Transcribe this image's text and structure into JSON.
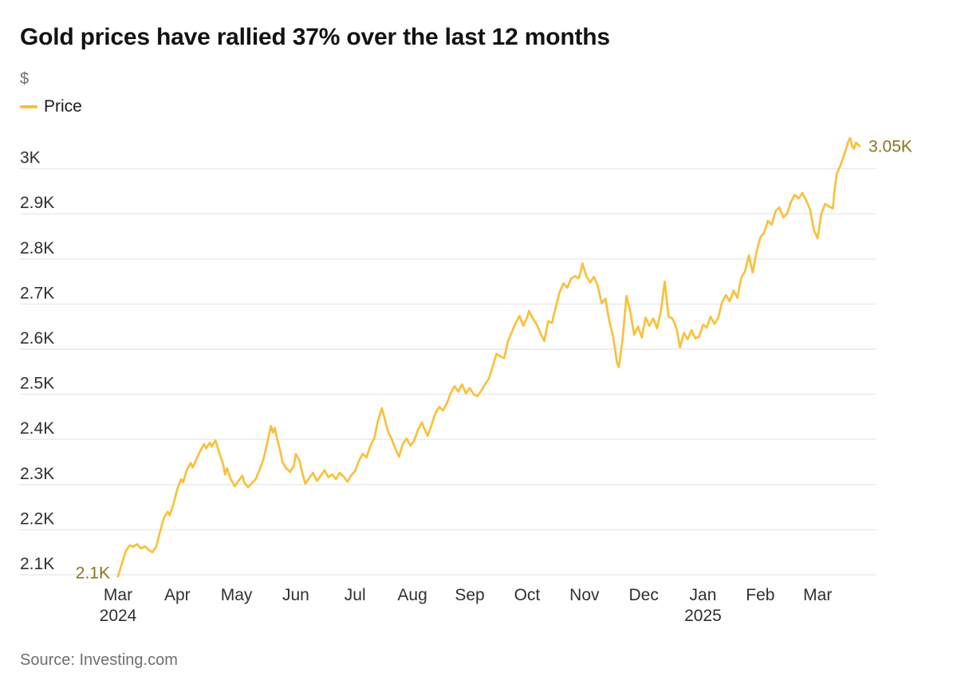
{
  "header": {
    "title": "Gold prices have rallied 37% over the last 12 months",
    "unit_label": "$",
    "legend": [
      {
        "label": "Price",
        "color": "#F8C13C"
      }
    ]
  },
  "footer": {
    "source": "Source: Investing.com"
  },
  "colors": {
    "line": "#F8C13C",
    "annotation_text": "#8B7423",
    "grid": "#E9E9E9",
    "tick_label": "#303030",
    "muted_text": "#6f6f6f",
    "title_text": "#121212",
    "background": "#ffffff"
  },
  "chart_data": {
    "type": "line",
    "title": "Gold prices have rallied 37% over the last 12 months",
    "unit": "$",
    "legend_entries": [
      "Price"
    ],
    "legend_position": "top-left",
    "grid": true,
    "xlabel": "",
    "ylabel": "$",
    "x_range_days": [
      0,
      388
    ],
    "y_range": [
      2060,
      3090
    ],
    "y_ticks": [
      {
        "label": "3K",
        "value": 3000
      },
      {
        "label": "2.9K",
        "value": 2900
      },
      {
        "label": "2.8K",
        "value": 2800
      },
      {
        "label": "2.7K",
        "value": 2700
      },
      {
        "label": "2.6K",
        "value": 2600
      },
      {
        "label": "2.5K",
        "value": 2500
      },
      {
        "label": "2.4K",
        "value": 2400
      },
      {
        "label": "2.3K",
        "value": 2300
      },
      {
        "label": "2.2K",
        "value": 2200
      },
      {
        "label": "2.1K",
        "value": 2100
      }
    ],
    "x_ticks": [
      {
        "label": "Mar",
        "year": "2024",
        "day": 0
      },
      {
        "label": "Apr",
        "day": 31
      },
      {
        "label": "May",
        "day": 62
      },
      {
        "label": "Jun",
        "day": 93
      },
      {
        "label": "Jul",
        "day": 124
      },
      {
        "label": "Aug",
        "day": 154
      },
      {
        "label": "Sep",
        "day": 184
      },
      {
        "label": "Oct",
        "day": 214
      },
      {
        "label": "Nov",
        "day": 244
      },
      {
        "label": "Dec",
        "day": 275
      },
      {
        "label": "Jan",
        "year": "2025",
        "day": 306
      },
      {
        "label": "Feb",
        "day": 336
      },
      {
        "label": "Mar",
        "day": 366
      }
    ],
    "annotations": [
      {
        "text": "2.1K",
        "day": 0,
        "value": 2096,
        "position": "start"
      },
      {
        "text": "3.05K",
        "day": 388,
        "value": 3050,
        "position": "end"
      }
    ],
    "series": [
      {
        "name": "Price",
        "color": "#F8C13C",
        "points": [
          [
            0,
            2096
          ],
          [
            2,
            2125
          ],
          [
            4,
            2152
          ],
          [
            6,
            2165
          ],
          [
            8,
            2162
          ],
          [
            10,
            2168
          ],
          [
            12,
            2158
          ],
          [
            14,
            2163
          ],
          [
            16,
            2155
          ],
          [
            18,
            2150
          ],
          [
            20,
            2162
          ],
          [
            22,
            2196
          ],
          [
            24,
            2226
          ],
          [
            26,
            2240
          ],
          [
            27,
            2232
          ],
          [
            29,
            2256
          ],
          [
            31,
            2290
          ],
          [
            33,
            2312
          ],
          [
            34,
            2305
          ],
          [
            36,
            2332
          ],
          [
            38,
            2348
          ],
          [
            39,
            2338
          ],
          [
            41,
            2356
          ],
          [
            43,
            2375
          ],
          [
            45,
            2390
          ],
          [
            46,
            2380
          ],
          [
            48,
            2393
          ],
          [
            49,
            2384
          ],
          [
            51,
            2398
          ],
          [
            53,
            2370
          ],
          [
            55,
            2345
          ],
          [
            56,
            2322
          ],
          [
            57,
            2336
          ],
          [
            59,
            2312
          ],
          [
            61,
            2296
          ],
          [
            63,
            2308
          ],
          [
            65,
            2320
          ],
          [
            66,
            2305
          ],
          [
            68,
            2294
          ],
          [
            70,
            2303
          ],
          [
            72,
            2312
          ],
          [
            74,
            2332
          ],
          [
            76,
            2355
          ],
          [
            78,
            2392
          ],
          [
            80,
            2430
          ],
          [
            81,
            2415
          ],
          [
            82,
            2426
          ],
          [
            83,
            2405
          ],
          [
            85,
            2372
          ],
          [
            86,
            2350
          ],
          [
            88,
            2336
          ],
          [
            90,
            2328
          ],
          [
            92,
            2342
          ],
          [
            93,
            2368
          ],
          [
            95,
            2352
          ],
          [
            96,
            2332
          ],
          [
            98,
            2302
          ],
          [
            100,
            2314
          ],
          [
            102,
            2326
          ],
          [
            104,
            2308
          ],
          [
            106,
            2319
          ],
          [
            108,
            2332
          ],
          [
            110,
            2316
          ],
          [
            112,
            2323
          ],
          [
            114,
            2312
          ],
          [
            116,
            2326
          ],
          [
            118,
            2318
          ],
          [
            120,
            2306
          ],
          [
            122,
            2320
          ],
          [
            124,
            2330
          ],
          [
            126,
            2352
          ],
          [
            128,
            2368
          ],
          [
            130,
            2360
          ],
          [
            132,
            2386
          ],
          [
            134,
            2402
          ],
          [
            136,
            2442
          ],
          [
            138,
            2469
          ],
          [
            139,
            2454
          ],
          [
            141,
            2420
          ],
          [
            143,
            2402
          ],
          [
            145,
            2380
          ],
          [
            147,
            2362
          ],
          [
            149,
            2390
          ],
          [
            151,
            2402
          ],
          [
            153,
            2386
          ],
          [
            155,
            2398
          ],
          [
            157,
            2422
          ],
          [
            159,
            2438
          ],
          [
            160,
            2426
          ],
          [
            162,
            2408
          ],
          [
            164,
            2432
          ],
          [
            166,
            2458
          ],
          [
            168,
            2472
          ],
          [
            170,
            2464
          ],
          [
            172,
            2480
          ],
          [
            174,
            2502
          ],
          [
            176,
            2518
          ],
          [
            178,
            2506
          ],
          [
            180,
            2522
          ],
          [
            182,
            2502
          ],
          [
            184,
            2514
          ],
          [
            186,
            2500
          ],
          [
            188,
            2496
          ],
          [
            190,
            2508
          ],
          [
            192,
            2522
          ],
          [
            194,
            2535
          ],
          [
            196,
            2562
          ],
          [
            198,
            2590
          ],
          [
            200,
            2584
          ],
          [
            202,
            2580
          ],
          [
            204,
            2618
          ],
          [
            206,
            2638
          ],
          [
            208,
            2658
          ],
          [
            210,
            2674
          ],
          [
            212,
            2652
          ],
          [
            214,
            2670
          ],
          [
            215,
            2685
          ],
          [
            217,
            2668
          ],
          [
            219,
            2655
          ],
          [
            221,
            2635
          ],
          [
            223,
            2618
          ],
          [
            225,
            2662
          ],
          [
            227,
            2658
          ],
          [
            229,
            2694
          ],
          [
            231,
            2726
          ],
          [
            233,
            2746
          ],
          [
            235,
            2736
          ],
          [
            237,
            2756
          ],
          [
            239,
            2762
          ],
          [
            241,
            2757
          ],
          [
            242,
            2772
          ],
          [
            243,
            2790
          ],
          [
            245,
            2762
          ],
          [
            247,
            2748
          ],
          [
            249,
            2760
          ],
          [
            251,
            2740
          ],
          [
            253,
            2702
          ],
          [
            255,
            2712
          ],
          [
            257,
            2662
          ],
          [
            259,
            2628
          ],
          [
            261,
            2570
          ],
          [
            262,
            2560
          ],
          [
            264,
            2625
          ],
          [
            266,
            2718
          ],
          [
            268,
            2682
          ],
          [
            270,
            2632
          ],
          [
            272,
            2650
          ],
          [
            274,
            2626
          ],
          [
            276,
            2670
          ],
          [
            278,
            2652
          ],
          [
            280,
            2668
          ],
          [
            282,
            2646
          ],
          [
            284,
            2685
          ],
          [
            286,
            2750
          ],
          [
            288,
            2672
          ],
          [
            290,
            2668
          ],
          [
            292,
            2648
          ],
          [
            294,
            2604
          ],
          [
            296,
            2636
          ],
          [
            298,
            2622
          ],
          [
            300,
            2642
          ],
          [
            302,
            2624
          ],
          [
            304,
            2628
          ],
          [
            306,
            2654
          ],
          [
            308,
            2648
          ],
          [
            310,
            2672
          ],
          [
            312,
            2656
          ],
          [
            314,
            2670
          ],
          [
            316,
            2704
          ],
          [
            318,
            2720
          ],
          [
            320,
            2706
          ],
          [
            322,
            2730
          ],
          [
            324,
            2714
          ],
          [
            326,
            2758
          ],
          [
            328,
            2772
          ],
          [
            330,
            2808
          ],
          [
            332,
            2770
          ],
          [
            334,
            2815
          ],
          [
            336,
            2848
          ],
          [
            338,
            2858
          ],
          [
            340,
            2884
          ],
          [
            342,
            2876
          ],
          [
            344,
            2906
          ],
          [
            346,
            2914
          ],
          [
            348,
            2892
          ],
          [
            350,
            2900
          ],
          [
            352,
            2926
          ],
          [
            354,
            2942
          ],
          [
            356,
            2934
          ],
          [
            358,
            2946
          ],
          [
            360,
            2930
          ],
          [
            362,
            2910
          ],
          [
            364,
            2864
          ],
          [
            366,
            2846
          ],
          [
            368,
            2902
          ],
          [
            370,
            2922
          ],
          [
            372,
            2916
          ],
          [
            374,
            2912
          ],
          [
            375,
            2958
          ],
          [
            376,
            2988
          ],
          [
            378,
            3008
          ],
          [
            380,
            3032
          ],
          [
            382,
            3060
          ],
          [
            383,
            3068
          ],
          [
            384,
            3050
          ],
          [
            385,
            3044
          ],
          [
            386,
            3058
          ],
          [
            388,
            3050
          ]
        ]
      }
    ]
  }
}
